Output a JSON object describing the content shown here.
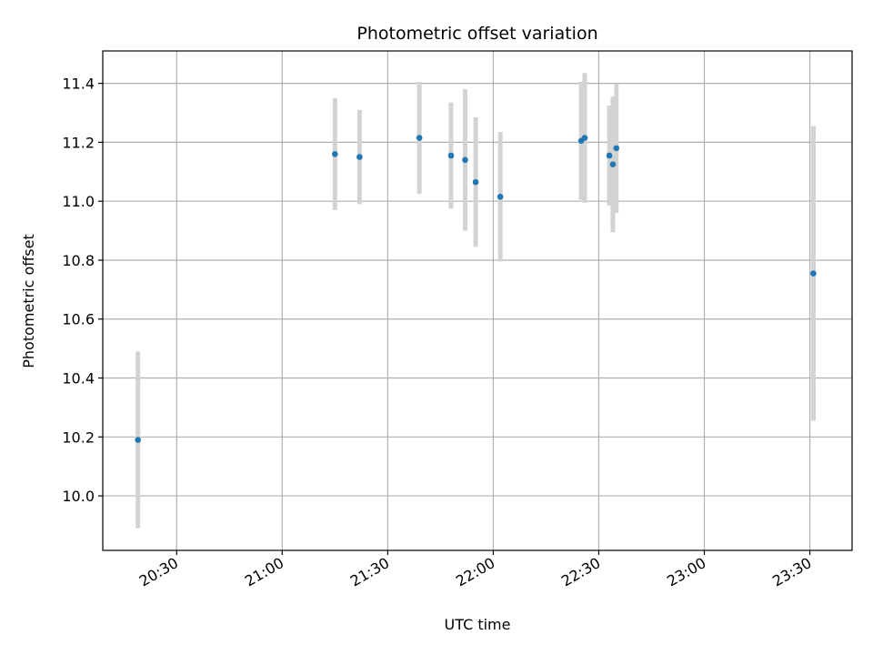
{
  "chart_data": {
    "type": "scatter",
    "title": "Photometric offset variation",
    "xlabel": "UTC time",
    "ylabel": "Photometric offset",
    "x_ticks": [
      "20:30",
      "21:00",
      "21:30",
      "22:00",
      "22:30",
      "23:00",
      "23:30"
    ],
    "y_ticks": [
      "10.0",
      "10.2",
      "10.4",
      "10.6",
      "10.8",
      "11.0",
      "11.2",
      "11.4"
    ],
    "xlim": [
      "20:09",
      "23:42"
    ],
    "ylim": [
      9.815,
      11.51
    ],
    "grid": true,
    "colors": {
      "point": "#1f77b4",
      "errorbar": "#d3d3d3",
      "grid": "#b0b0b0"
    },
    "series": [
      {
        "points": [
          {
            "x": "20:19",
            "y": 10.19,
            "err": 0.3
          },
          {
            "x": "21:15",
            "y": 11.16,
            "err": 0.19
          },
          {
            "x": "21:22",
            "y": 11.15,
            "err": 0.16
          },
          {
            "x": "21:39",
            "y": 11.215,
            "err": 0.19
          },
          {
            "x": "21:48",
            "y": 11.155,
            "err": 0.18
          },
          {
            "x": "21:52",
            "y": 11.14,
            "err": 0.24
          },
          {
            "x": "21:55",
            "y": 11.065,
            "err": 0.22
          },
          {
            "x": "22:02",
            "y": 11.015,
            "err": 0.22
          },
          {
            "x": "22:25",
            "y": 11.205,
            "err": 0.2
          },
          {
            "x": "22:26",
            "y": 11.215,
            "err": 0.22
          },
          {
            "x": "22:33",
            "y": 11.155,
            "err": 0.17
          },
          {
            "x": "22:34",
            "y": 11.125,
            "err": 0.23
          },
          {
            "x": "22:35",
            "y": 11.18,
            "err": 0.22
          },
          {
            "x": "23:31",
            "y": 10.755,
            "err": 0.5
          }
        ]
      }
    ]
  }
}
